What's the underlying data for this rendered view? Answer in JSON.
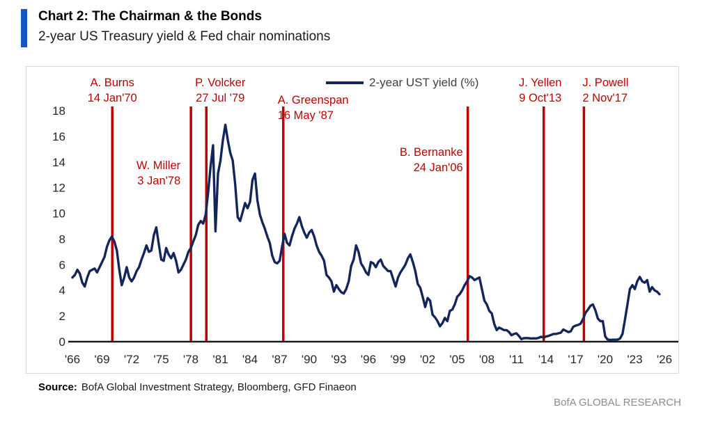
{
  "header": {
    "title": "Chart 2: The Chairman & the Bonds",
    "subtitle": "2-year US Treasury yield & Fed chair nominations"
  },
  "legend": {
    "label": "2-year UST yield (%)"
  },
  "footer": {
    "source_label": "Source:",
    "source_text": "BofA Global Investment Strategy, Bloomberg, GFD Finaeon",
    "brand": "BofA GLOBAL RESEARCH"
  },
  "colors": {
    "accent_blue": "#1057C8",
    "line_navy": "#13265B",
    "event_red": "#C00000",
    "axis_text": "#262626",
    "border_gray": "#D9D9D9",
    "brand_gray": "#8C8C8C"
  },
  "chart_data": {
    "type": "line",
    "title": "Chart 2: The Chairman & the Bonds",
    "subtitle": "2-year US Treasury yield & Fed chair nominations",
    "xlabel": "",
    "ylabel": "",
    "grid": false,
    "legend_position": "top-center",
    "x_tick_labels": [
      "'66",
      "'69",
      "'72",
      "'75",
      "'78",
      "'81",
      "'84",
      "'87",
      "'90",
      "'93",
      "'96",
      "'99",
      "'02",
      "'05",
      "'08",
      "'11",
      "'14",
      "'17",
      "'20",
      "'23",
      "'26"
    ],
    "x_tick_years": [
      1966,
      1969,
      1972,
      1975,
      1978,
      1981,
      1984,
      1987,
      1990,
      1993,
      1996,
      1999,
      2002,
      2005,
      2008,
      2011,
      2014,
      2017,
      2020,
      2023,
      2026
    ],
    "y_ticks": [
      0,
      2,
      4,
      6,
      8,
      10,
      12,
      14,
      16,
      18
    ],
    "xlim": [
      1965.6,
      2027.4
    ],
    "ylim": [
      0,
      18.6
    ],
    "series": [
      {
        "name": "2-year UST yield (%)",
        "x_start_year": 1966,
        "x_step_years": 0.25,
        "values": [
          5.0,
          5.2,
          5.6,
          5.3,
          4.6,
          4.3,
          5.0,
          5.5,
          5.6,
          5.7,
          5.4,
          5.8,
          6.2,
          6.6,
          7.4,
          7.9,
          8.2,
          7.8,
          7.1,
          5.6,
          4.4,
          5.0,
          5.8,
          5.0,
          4.7,
          5.0,
          5.5,
          5.8,
          6.4,
          6.9,
          7.5,
          7.0,
          7.1,
          8.3,
          8.9,
          7.6,
          6.4,
          6.3,
          7.3,
          6.8,
          6.5,
          6.9,
          6.3,
          5.4,
          5.6,
          6.0,
          6.4,
          7.0,
          7.3,
          7.8,
          8.3,
          9.1,
          9.4,
          9.2,
          9.9,
          11.6,
          13.6,
          15.3,
          8.6,
          13.1,
          14.1,
          15.7,
          16.9,
          15.7,
          14.7,
          14.1,
          12.2,
          9.7,
          9.4,
          10.1,
          10.8,
          10.4,
          10.9,
          12.6,
          13.1,
          11.0,
          9.9,
          9.3,
          8.8,
          8.2,
          7.7,
          6.7,
          6.2,
          6.1,
          6.3,
          7.4,
          8.4,
          7.7,
          7.5,
          8.2,
          8.8,
          9.2,
          9.7,
          9.0,
          8.5,
          8.1,
          8.5,
          8.7,
          8.2,
          7.5,
          7.0,
          6.7,
          6.3,
          5.2,
          5.0,
          4.7,
          3.9,
          4.4,
          4.1,
          3.85,
          3.75,
          4.1,
          4.7,
          5.9,
          6.4,
          7.5,
          7.0,
          6.1,
          5.8,
          5.4,
          5.2,
          6.2,
          6.1,
          5.8,
          6.2,
          6.4,
          5.9,
          5.7,
          5.5,
          5.5,
          4.9,
          4.3,
          5.0,
          5.4,
          5.7,
          6.0,
          6.5,
          6.8,
          6.2,
          5.5,
          4.5,
          4.2,
          3.5,
          2.7,
          3.4,
          3.2,
          2.1,
          1.9,
          1.6,
          1.2,
          1.45,
          1.85,
          1.6,
          2.4,
          2.5,
          2.9,
          3.5,
          3.7,
          4.0,
          4.4,
          4.7,
          5.1,
          5.0,
          4.8,
          4.9,
          5.0,
          4.1,
          3.2,
          2.9,
          2.4,
          2.2,
          1.4,
          0.9,
          1.1,
          1.0,
          0.9,
          0.9,
          0.75,
          0.5,
          0.6,
          0.65,
          0.45,
          0.2,
          0.27,
          0.28,
          0.27,
          0.25,
          0.26,
          0.25,
          0.3,
          0.38,
          0.33,
          0.4,
          0.45,
          0.52,
          0.6,
          0.6,
          0.65,
          0.7,
          0.95,
          0.85,
          0.75,
          0.8,
          1.15,
          1.25,
          1.3,
          1.4,
          1.75,
          2.25,
          2.5,
          2.8,
          2.9,
          2.45,
          1.8,
          1.6,
          1.6,
          0.4,
          0.17,
          0.14,
          0.15,
          0.15,
          0.16,
          0.25,
          0.6,
          1.7,
          2.9,
          4.1,
          4.4,
          4.1,
          4.7,
          5.05,
          4.7,
          4.6,
          4.8,
          3.9,
          4.25,
          4.0,
          3.9,
          3.7
        ]
      }
    ],
    "events": [
      {
        "name": "A. Burns",
        "date": "14 Jan'70",
        "year": 1970.04
      },
      {
        "name": "W. Miller",
        "date": "3 Jan'78",
        "year": 1978.01
      },
      {
        "name": "P. Volcker",
        "date": "27 Jul '79",
        "year": 1979.57
      },
      {
        "name": "A. Greenspan",
        "date": "16 May '87",
        "year": 1987.37
      },
      {
        "name": "B. Bernanke",
        "date": "24 Jan'06",
        "year": 2006.07
      },
      {
        "name": "J. Yellen",
        "date": "9 Oct'13",
        "year": 2013.77
      },
      {
        "name": "J. Powell",
        "date": "2 Nov'17",
        "year": 2017.84
      }
    ]
  }
}
